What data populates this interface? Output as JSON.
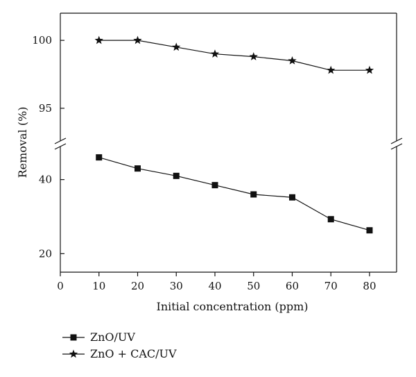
{
  "chart_data": {
    "type": "line",
    "title": "",
    "xlabel": "Initial concentration (ppm)",
    "ylabel": "Removal (%)",
    "x_ticks": [
      "0",
      "10",
      "20",
      "30",
      "40",
      "50",
      "60",
      "70",
      "80"
    ],
    "y_ticks": [
      "20",
      "40",
      "95",
      "100"
    ],
    "x": [
      10,
      20,
      30,
      40,
      50,
      60,
      70,
      80
    ],
    "xlim": [
      0,
      87
    ],
    "broken_y_axis": {
      "upper_ylim": [
        92.8,
        102
      ],
      "lower_ylim": [
        15,
        48
      ]
    },
    "grid": false,
    "legend_position": "below-left",
    "series": [
      {
        "name": "ZnO/UV",
        "marker": "square",
        "values": [
          46.0,
          43.0,
          41.0,
          38.5,
          36.0,
          35.2,
          29.3,
          26.3
        ]
      },
      {
        "name": "ZnO + CAC/UV",
        "marker": "star",
        "values": [
          100.0,
          100.0,
          99.5,
          99.0,
          98.8,
          98.5,
          97.8,
          97.8
        ]
      }
    ]
  }
}
